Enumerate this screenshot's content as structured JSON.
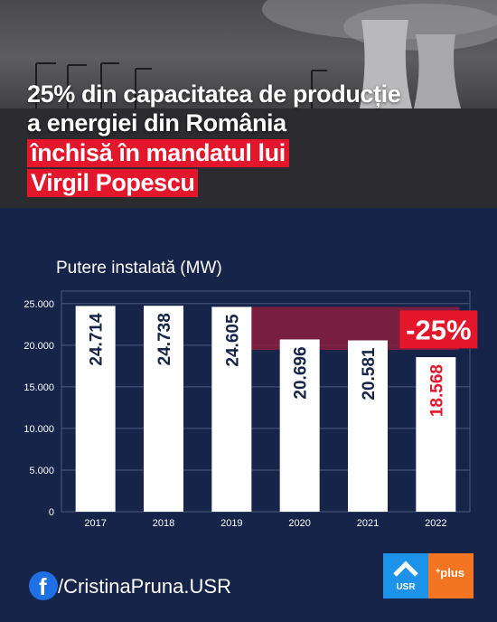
{
  "headline": {
    "line1": "25% din capacitatea de producție",
    "line2": "a energiei din România",
    "line3": "închisă în mandatul lui",
    "line4": "Virgil Popescu"
  },
  "chart_data": {
    "type": "bar",
    "title": "Putere instalată (MW)",
    "categories": [
      "2017",
      "2018",
      "2019",
      "2020",
      "2021",
      "2022"
    ],
    "values": [
      24714,
      24738,
      24605,
      20696,
      20581,
      18568
    ],
    "value_labels": [
      "24.714",
      "24.738",
      "24.605",
      "20.696",
      "20.581",
      "18.568"
    ],
    "yticks": [
      0,
      5000,
      10000,
      15000,
      20000,
      25000
    ],
    "ytick_labels": [
      "0",
      "5.000",
      "10.000",
      "15.000",
      "20.000",
      "25.000"
    ],
    "ylim": [
      0,
      26500
    ],
    "grid": true,
    "highlight": {
      "from_category": "2019",
      "to_category": "2022",
      "label": "-25%",
      "top_value": 24605,
      "bottom_value": 18568
    },
    "colors": {
      "bar": "#ffffff",
      "label": "#152448",
      "label_highlight": "#e4162b",
      "band": "#8a1f3e",
      "badge": "#e4162b"
    }
  },
  "footer": {
    "fb_icon": "f",
    "handle": "/CristinaPruna.USR",
    "logo_usr": "USR",
    "logo_plus_sup": "+",
    "logo_plus": "plus"
  }
}
